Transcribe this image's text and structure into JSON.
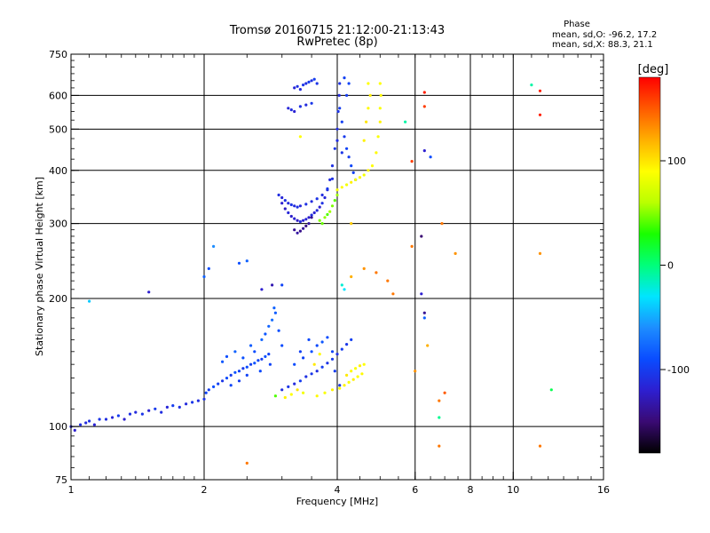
{
  "header": {
    "title_line1": "Tromsø 20160715 21:12:00-21:13:43",
    "title_line2": "RwPretec (8p)",
    "stats_title": "Phase",
    "stats_o": "mean, sd,O: -96.2, 17.2",
    "stats_x": "mean, sd,X:  88.3, 21.1"
  },
  "colorbar": {
    "label": "[deg]",
    "ticks": [
      {
        "value": 100,
        "label": "100"
      },
      {
        "value": 0,
        "label": "0"
      },
      {
        "value": -100,
        "label": "-100"
      }
    ],
    "range": [
      -180,
      180
    ],
    "gradient": [
      "#000000",
      "#3a0a73",
      "#2d1fd0",
      "#0a4cff",
      "#1d8dff",
      "#00e5ff",
      "#00ff7a",
      "#19ff00",
      "#baff00",
      "#ffff00",
      "#ffb000",
      "#ff5a00",
      "#ff0000"
    ]
  },
  "chart_data": {
    "type": "scatter",
    "xlabel": "Frequency [MHz]",
    "ylabel": "Stationary phase Virtual Height [km]",
    "x_scale": "log",
    "y_scale": "log",
    "xlim": [
      1,
      16
    ],
    "ylim": [
      75,
      750
    ],
    "x_ticks": [
      {
        "value": 1,
        "label": "1"
      },
      {
        "value": 2,
        "label": "2"
      },
      {
        "value": 4,
        "label": "4"
      },
      {
        "value": 6,
        "label": "6"
      },
      {
        "value": 8,
        "label": "8"
      },
      {
        "value": 10,
        "label": "10"
      },
      {
        "value": 16,
        "label": "16"
      }
    ],
    "x_grid": [
      2,
      4,
      6,
      8,
      10
    ],
    "y_ticks": [
      {
        "value": 75,
        "label": "75"
      },
      {
        "value": 100,
        "label": "100"
      },
      {
        "value": 200,
        "label": "200"
      },
      {
        "value": 300,
        "label": "300"
      },
      {
        "value": 400,
        "label": "400"
      },
      {
        "value": 500,
        "label": "500"
      },
      {
        "value": 600,
        "label": "600"
      },
      {
        "value": 750,
        "label": "750"
      }
    ],
    "y_grid": [
      100,
      200,
      300,
      400,
      500,
      600
    ],
    "grid": true,
    "color_by": "phase_deg",
    "points": [
      [
        1.0,
        100,
        -115
      ],
      [
        1.02,
        98,
        -120
      ],
      [
        1.05,
        101,
        -110
      ],
      [
        1.08,
        102,
        -112
      ],
      [
        1.1,
        103,
        -108
      ],
      [
        1.13,
        101,
        -118
      ],
      [
        1.16,
        104,
        -105
      ],
      [
        1.2,
        104,
        -110
      ],
      [
        1.24,
        105,
        -115
      ],
      [
        1.28,
        106,
        -100
      ],
      [
        1.32,
        104,
        -120
      ],
      [
        1.36,
        107,
        -108
      ],
      [
        1.4,
        108,
        -112
      ],
      [
        1.45,
        107,
        -105
      ],
      [
        1.5,
        109,
        -118
      ],
      [
        1.55,
        110,
        -102
      ],
      [
        1.6,
        108,
        -110
      ],
      [
        1.65,
        111,
        -115
      ],
      [
        1.7,
        112,
        -100
      ],
      [
        1.76,
        111,
        -108
      ],
      [
        1.82,
        113,
        -112
      ],
      [
        1.88,
        114,
        -104
      ],
      [
        1.94,
        115,
        -110
      ],
      [
        2.0,
        116,
        -106
      ],
      [
        2.02,
        120,
        -95
      ],
      [
        2.05,
        122,
        -100
      ],
      [
        2.1,
        124,
        -90
      ],
      [
        2.15,
        126,
        -98
      ],
      [
        2.2,
        128,
        -105
      ],
      [
        2.25,
        130,
        -92
      ],
      [
        2.3,
        132,
        -100
      ],
      [
        2.35,
        134,
        -88
      ],
      [
        2.4,
        135,
        -96
      ],
      [
        2.45,
        137,
        -102
      ],
      [
        2.5,
        138,
        -90
      ],
      [
        2.55,
        140,
        -98
      ],
      [
        2.6,
        141,
        -86
      ],
      [
        2.65,
        143,
        -94
      ],
      [
        2.7,
        144,
        -100
      ],
      [
        2.75,
        146,
        -88
      ],
      [
        2.8,
        148,
        -95
      ],
      [
        2.2,
        142,
        -85
      ],
      [
        2.25,
        146,
        -90
      ],
      [
        2.35,
        150,
        -80
      ],
      [
        2.45,
        145,
        -88
      ],
      [
        2.55,
        155,
        -82
      ],
      [
        2.6,
        150,
        -90
      ],
      [
        2.7,
        160,
        -78
      ],
      [
        2.75,
        165,
        -85
      ],
      [
        2.8,
        172,
        -80
      ],
      [
        2.85,
        178,
        -75
      ],
      [
        2.9,
        185,
        -82
      ],
      [
        2.95,
        168,
        -88
      ],
      [
        3.0,
        155,
        -90
      ],
      [
        2.88,
        190,
        -80
      ],
      [
        2.82,
        140,
        -95
      ],
      [
        2.68,
        135,
        -92
      ],
      [
        2.5,
        132,
        -96
      ],
      [
        2.4,
        128,
        -100
      ],
      [
        2.3,
        125,
        -94
      ],
      [
        3.0,
        122,
        -110
      ],
      [
        3.1,
        124,
        -105
      ],
      [
        3.2,
        126,
        -112
      ],
      [
        3.3,
        128,
        -100
      ],
      [
        3.4,
        131,
        -108
      ],
      [
        3.5,
        133,
        -104
      ],
      [
        3.6,
        135,
        -110
      ],
      [
        3.7,
        138,
        -100
      ],
      [
        3.8,
        141,
        -106
      ],
      [
        3.9,
        144,
        -102
      ],
      [
        4.0,
        148,
        -108
      ],
      [
        4.1,
        152,
        -100
      ],
      [
        4.2,
        156,
        -104
      ],
      [
        4.3,
        160,
        -98
      ],
      [
        3.2,
        140,
        -90
      ],
      [
        3.35,
        145,
        -95
      ],
      [
        3.5,
        150,
        -88
      ],
      [
        3.6,
        155,
        -92
      ],
      [
        3.7,
        158,
        -85
      ],
      [
        3.8,
        162,
        -90
      ],
      [
        3.9,
        150,
        -95
      ],
      [
        3.45,
        160,
        -92
      ],
      [
        3.3,
        150,
        -98
      ],
      [
        3.95,
        135,
        -100
      ],
      [
        4.05,
        125,
        -105
      ],
      [
        3.05,
        117,
        95
      ],
      [
        3.15,
        119,
        90
      ],
      [
        3.25,
        122,
        100
      ],
      [
        3.35,
        120,
        85
      ],
      [
        3.6,
        118,
        92
      ],
      [
        3.75,
        120,
        88
      ],
      [
        3.9,
        122,
        95
      ],
      [
        4.05,
        123,
        90
      ],
      [
        4.15,
        125,
        94
      ],
      [
        4.25,
        127,
        88
      ],
      [
        4.35,
        129,
        96
      ],
      [
        4.45,
        131,
        90
      ],
      [
        4.55,
        133,
        92
      ],
      [
        3.55,
        140,
        98
      ],
      [
        3.65,
        148,
        92
      ],
      [
        2.9,
        118,
        40
      ],
      [
        3.0,
        335,
        -120
      ],
      [
        3.05,
        325,
        -125
      ],
      [
        3.1,
        318,
        -115
      ],
      [
        3.15,
        312,
        -122
      ],
      [
        3.2,
        308,
        -118
      ],
      [
        3.25,
        305,
        -125
      ],
      [
        3.3,
        303,
        -112
      ],
      [
        3.35,
        305,
        -120
      ],
      [
        3.4,
        307,
        -116
      ],
      [
        3.45,
        310,
        -122
      ],
      [
        3.5,
        314,
        -110
      ],
      [
        3.55,
        318,
        -118
      ],
      [
        3.6,
        322,
        -114
      ],
      [
        3.65,
        328,
        -120
      ],
      [
        3.7,
        335,
        -108
      ],
      [
        3.75,
        345,
        -115
      ],
      [
        3.8,
        360,
        -110
      ],
      [
        3.85,
        380,
        -112
      ],
      [
        3.9,
        410,
        -108
      ],
      [
        3.95,
        450,
        -105
      ],
      [
        4.0,
        500,
        -110
      ],
      [
        4.02,
        550,
        -106
      ],
      [
        4.04,
        600,
        -112
      ],
      [
        4.05,
        640,
        -108
      ],
      [
        2.95,
        350,
        -110
      ],
      [
        3.0,
        345,
        -115
      ],
      [
        3.05,
        340,
        -108
      ],
      [
        3.1,
        335,
        -112
      ],
      [
        3.15,
        332,
        -106
      ],
      [
        3.2,
        330,
        -112
      ],
      [
        3.25,
        328,
        -108
      ],
      [
        3.3,
        330,
        -114
      ],
      [
        3.4,
        333,
        -108
      ],
      [
        3.5,
        338,
        -112
      ],
      [
        3.6,
        343,
        -106
      ],
      [
        3.7,
        350,
        -110
      ],
      [
        3.8,
        362,
        -104
      ],
      [
        3.9,
        382,
        -108
      ],
      [
        3.2,
        290,
        -140
      ],
      [
        3.25,
        285,
        -135
      ],
      [
        3.3,
        288,
        -142
      ],
      [
        3.35,
        292,
        -138
      ],
      [
        3.4,
        296,
        -145
      ],
      [
        3.45,
        300,
        -135
      ],
      [
        3.5,
        310,
        -140
      ],
      [
        3.2,
        625,
        -115
      ],
      [
        3.25,
        630,
        -108
      ],
      [
        3.3,
        620,
        -112
      ],
      [
        3.35,
        635,
        -105
      ],
      [
        3.4,
        640,
        -110
      ],
      [
        3.45,
        645,
        -102
      ],
      [
        3.5,
        650,
        -108
      ],
      [
        3.55,
        655,
        -100
      ],
      [
        3.6,
        640,
        -106
      ],
      [
        3.1,
        560,
        -115
      ],
      [
        3.15,
        555,
        -110
      ],
      [
        3.2,
        550,
        -118
      ],
      [
        3.3,
        565,
        -108
      ],
      [
        3.4,
        570,
        -112
      ],
      [
        3.5,
        575,
        -104
      ],
      [
        4.05,
        560,
        -100
      ],
      [
        4.1,
        520,
        -98
      ],
      [
        4.15,
        480,
        -102
      ],
      [
        4.2,
        450,
        -96
      ],
      [
        4.25,
        430,
        -100
      ],
      [
        4.3,
        410,
        -94
      ],
      [
        4.35,
        395,
        -98
      ],
      [
        4.4,
        380,
        -92
      ],
      [
        4.2,
        600,
        -100
      ],
      [
        4.25,
        640,
        -95
      ],
      [
        4.15,
        660,
        -98
      ],
      [
        4.0,
        470,
        -110
      ],
      [
        4.1,
        440,
        -105
      ],
      [
        3.7,
        300,
        45
      ],
      [
        3.75,
        310,
        52
      ],
      [
        3.8,
        315,
        40
      ],
      [
        3.85,
        320,
        55
      ],
      [
        3.9,
        330,
        48
      ],
      [
        3.95,
        340,
        42
      ],
      [
        4.0,
        350,
        55
      ],
      [
        3.65,
        305,
        50
      ],
      [
        4.0,
        360,
        88
      ],
      [
        4.1,
        365,
        92
      ],
      [
        4.2,
        370,
        85
      ],
      [
        4.3,
        375,
        95
      ],
      [
        4.4,
        380,
        88
      ],
      [
        4.5,
        385,
        92
      ],
      [
        4.6,
        390,
        86
      ],
      [
        4.7,
        400,
        94
      ],
      [
        4.8,
        410,
        90
      ],
      [
        4.9,
        440,
        92
      ],
      [
        4.95,
        480,
        88
      ],
      [
        5.0,
        520,
        94
      ],
      [
        5.0,
        560,
        88
      ],
      [
        5.02,
        600,
        92
      ],
      [
        5.0,
        640,
        90
      ],
      [
        4.6,
        470,
        95
      ],
      [
        4.65,
        520,
        100
      ],
      [
        4.7,
        560,
        92
      ],
      [
        4.75,
        600,
        96
      ],
      [
        4.7,
        640,
        90
      ],
      [
        4.3,
        135,
        92
      ],
      [
        4.4,
        137,
        88
      ],
      [
        4.5,
        139,
        95
      ],
      [
        4.6,
        140,
        90
      ],
      [
        4.2,
        132,
        98
      ],
      [
        1.1,
        197,
        -40
      ],
      [
        1.5,
        207,
        -120
      ],
      [
        2.0,
        225,
        -80
      ],
      [
        2.05,
        235,
        -90
      ],
      [
        2.1,
        265,
        -60
      ],
      [
        2.4,
        242,
        -90
      ],
      [
        2.5,
        245,
        -80
      ],
      [
        2.7,
        210,
        -120
      ],
      [
        2.85,
        215,
        -130
      ],
      [
        3.0,
        215,
        -95
      ],
      [
        4.1,
        215,
        -20
      ],
      [
        4.15,
        210,
        -30
      ],
      [
        4.3,
        225,
        120
      ],
      [
        4.6,
        235,
        130
      ],
      [
        4.9,
        230,
        140
      ],
      [
        5.2,
        220,
        140
      ],
      [
        5.35,
        205,
        140
      ],
      [
        6.2,
        205,
        -120
      ],
      [
        6.3,
        180,
        -80
      ],
      [
        6.0,
        135,
        130
      ],
      [
        6.4,
        155,
        120
      ],
      [
        6.8,
        115,
        140
      ],
      [
        7.0,
        120,
        150
      ],
      [
        6.8,
        105,
        -5
      ],
      [
        6.8,
        90,
        140
      ],
      [
        6.3,
        445,
        -120
      ],
      [
        6.5,
        430,
        -90
      ],
      [
        6.9,
        300,
        140
      ],
      [
        7.4,
        255,
        130
      ],
      [
        6.3,
        610,
        170
      ],
      [
        6.3,
        565,
        160
      ],
      [
        5.7,
        520,
        -10
      ],
      [
        5.9,
        420,
        160
      ],
      [
        5.9,
        265,
        140
      ],
      [
        6.2,
        280,
        -150
      ],
      [
        6.3,
        185,
        -140
      ],
      [
        11.0,
        635,
        -10
      ],
      [
        11.5,
        615,
        170
      ],
      [
        11.5,
        540,
        170
      ],
      [
        11.5,
        255,
        130
      ],
      [
        12.2,
        122,
        10
      ],
      [
        11.5,
        90,
        140
      ],
      [
        2.5,
        82,
        140
      ],
      [
        3.3,
        480,
        90
      ],
      [
        4.3,
        300,
        110
      ]
    ]
  }
}
